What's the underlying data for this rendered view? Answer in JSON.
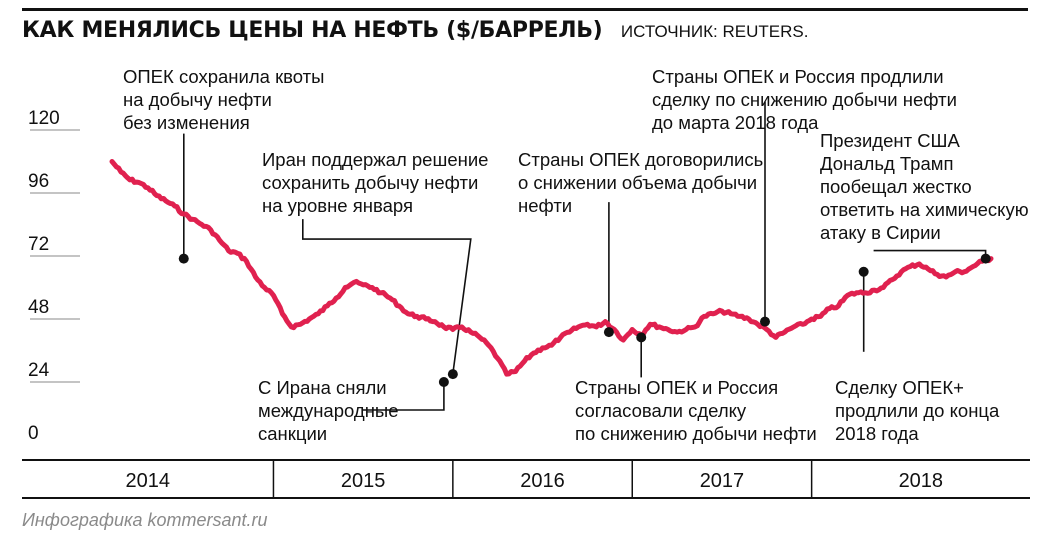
{
  "header": {
    "title": "КАК МЕНЯЛИСЬ ЦЕНЫ НА НЕФТЬ ($/БАРРЕЛЬ)",
    "source": "ИСТОЧНИК: REUTERS."
  },
  "footer": {
    "credit": "Инфографика kommersant.ru"
  },
  "colors": {
    "line": "#e0214f",
    "text": "#111111",
    "axis": "#111111",
    "gridline": "#888888",
    "marker": "#111111",
    "credit": "#8a8a8a"
  },
  "chart_data": {
    "type": "line",
    "title": "КАК МЕНЯЛИСЬ ЦЕНЫ НА НЕФТЬ ($/БАРРЕЛЬ)",
    "xlabel": "",
    "ylabel": "",
    "ylim": [
      0,
      120
    ],
    "yticks": [
      0,
      24,
      48,
      72,
      96,
      120
    ],
    "xlim": [
      2014.0,
      2018.95
    ],
    "years": [
      {
        "label": "2014",
        "from": 2014.0,
        "to": 2014.9
      },
      {
        "label": "2015",
        "from": 2014.9,
        "to": 2015.9
      },
      {
        "label": "2016",
        "from": 2015.9,
        "to": 2016.9
      },
      {
        "label": "2017",
        "from": 2016.9,
        "to": 2017.9
      },
      {
        "label": "2018",
        "from": 2017.9,
        "to": 2018.95
      }
    ],
    "series": [
      {
        "x": [
          2014.0,
          2014.05,
          2014.1,
          2014.15,
          2014.2,
          2014.25,
          2014.3,
          2014.35,
          2014.4,
          2014.45,
          2014.5,
          2014.55,
          2014.6,
          2014.65,
          2014.7,
          2014.75,
          2014.8,
          2014.85,
          2014.9,
          2014.95,
          2015.0,
          2015.05,
          2015.1,
          2015.15,
          2015.2,
          2015.25,
          2015.3,
          2015.35,
          2015.4,
          2015.45,
          2015.5,
          2015.55,
          2015.6,
          2015.65,
          2015.7,
          2015.75,
          2015.8,
          2015.85,
          2015.9,
          2015.95,
          2016.0,
          2016.05,
          2016.1,
          2016.15,
          2016.2,
          2016.25,
          2016.3,
          2016.35,
          2016.4,
          2016.45,
          2016.5,
          2016.55,
          2016.6,
          2016.65,
          2016.7,
          2016.75,
          2016.8,
          2016.85,
          2016.9,
          2016.95,
          2017.0,
          2017.05,
          2017.1,
          2017.15,
          2017.2,
          2017.25,
          2017.3,
          2017.35,
          2017.4,
          2017.45,
          2017.5,
          2017.55,
          2017.6,
          2017.65,
          2017.7,
          2017.75,
          2017.8,
          2017.85,
          2017.9,
          2017.95,
          2018.0,
          2018.05,
          2018.1,
          2018.15,
          2018.2,
          2018.25,
          2018.3,
          2018.35,
          2018.4,
          2018.45,
          2018.5,
          2018.55,
          2018.6,
          2018.65,
          2018.7,
          2018.75,
          2018.8,
          2018.85,
          2018.9
        ],
        "y": [
          108,
          104,
          101,
          100,
          98,
          95,
          93,
          91,
          88,
          86,
          84,
          82,
          78,
          74,
          73,
          70,
          64,
          60,
          57,
          50,
          45,
          46,
          48,
          50,
          53,
          56,
          60,
          62,
          61,
          60,
          58,
          56,
          53,
          50,
          49,
          48,
          47,
          45,
          44,
          45,
          43,
          41,
          38,
          33,
          27,
          28,
          32,
          35,
          37,
          38,
          41,
          43,
          45,
          46,
          45,
          47,
          44,
          40,
          44,
          42,
          46,
          45,
          44,
          43,
          44,
          45,
          49,
          50,
          51,
          50,
          49,
          48,
          46,
          44,
          41,
          43,
          45,
          46,
          48,
          49,
          52,
          53,
          57,
          58,
          58,
          59,
          60,
          63,
          66,
          68,
          69,
          67,
          65,
          64,
          66,
          66,
          68,
          70,
          71
        ]
      }
    ],
    "events": [
      {
        "x": 2014.4,
        "y": 71,
        "label": [
          "ОПЕК сохранила квоты",
          "на добычу нефти",
          "без изменения"
        ]
      },
      {
        "x": 2015.9,
        "y": 27,
        "label": [
          "Иран поддержал решение",
          "сохранить добычу нефти",
          "на уровне января"
        ]
      },
      {
        "x": 2015.85,
        "y": 24,
        "label": [
          "С Ирана сняли",
          "международные",
          "санкции"
        ]
      },
      {
        "x": 2016.77,
        "y": 43,
        "label": [
          "Страны ОПЕК договорились",
          "о снижении объема добычи",
          "нефти"
        ]
      },
      {
        "x": 2016.95,
        "y": 41,
        "label": [
          "Страны ОПЕК и Россия",
          "согласовали сделку",
          "по снижению добычи нефти"
        ]
      },
      {
        "x": 2017.64,
        "y": 47,
        "label": [
          "Страны ОПЕК и Россия продлили",
          "сделку по снижению добычи нефти",
          "до марта 2018 года"
        ]
      },
      {
        "x": 2018.19,
        "y": 66,
        "label": [
          "Сделку ОПЕК+",
          "продлили до конца",
          "2018 года"
        ]
      },
      {
        "x": 2018.87,
        "y": 71,
        "label": [
          "Президент США",
          "Дональд Трамп",
          "пообещал жестко",
          "ответить на химическую",
          "атаку в Сирии"
        ]
      }
    ]
  }
}
